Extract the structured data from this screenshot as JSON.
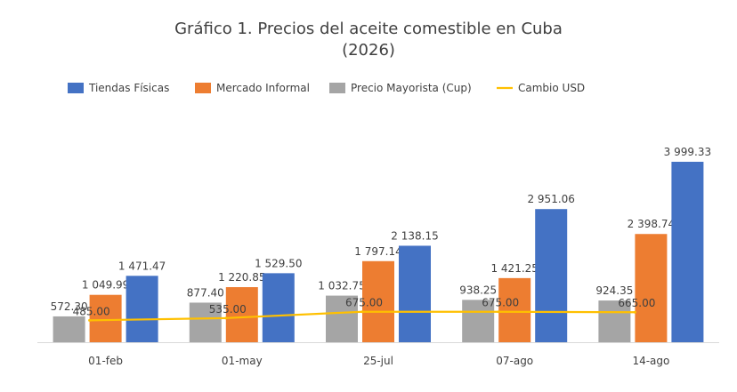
{
  "chart_data": {
    "type": "bar",
    "title_lines": [
      "Gráfico 1. Precios del aceite comestible en Cuba",
      "(2026)"
    ],
    "categories": [
      "01-feb",
      "01-may",
      "25-jul",
      "07-ago",
      "14-ago"
    ],
    "series": [
      {
        "name": "Precio Mayorista (Cup)",
        "type": "bar",
        "color": "#a5a5a5",
        "values": [
          572.3,
          877.4,
          1032.75,
          938.25,
          924.35
        ],
        "labels": [
          "572.30",
          "877.40",
          "1 032.75",
          "938.25",
          "924.35"
        ]
      },
      {
        "name": "Mercado Informal",
        "type": "bar",
        "color": "#ed7d31",
        "values": [
          1049.99,
          1220.85,
          1797.14,
          1421.25,
          2398.74
        ],
        "labels": [
          "1 049.99",
          "1 220.85",
          "1 797.14",
          "1 421.25",
          "2 398.74"
        ]
      },
      {
        "name": "Tiendas Físicas",
        "type": "bar",
        "color": "#4472c4",
        "values": [
          1471.47,
          1529.5,
          2138.15,
          2951.06,
          3999.33
        ],
        "labels": [
          "1 471.47",
          "1 529.50",
          "2 138.15",
          "2 951.06",
          "3 999.33"
        ]
      },
      {
        "name": "Cambio USD",
        "type": "line",
        "color": "#ffc000",
        "values": [
          485.0,
          535.0,
          675.0,
          675.0,
          665.0
        ],
        "labels": [
          "485.00",
          "535.00",
          "675.00",
          "675.00",
          "665.00"
        ]
      }
    ],
    "legend_order": [
      "Tiendas Físicas",
      "Mercado Informal",
      "Precio Mayorista (Cup)",
      "Cambio USD"
    ],
    "legend_position": "top",
    "ylim": [
      0,
      4000
    ],
    "grid": false,
    "xlabel": "",
    "ylabel": ""
  }
}
